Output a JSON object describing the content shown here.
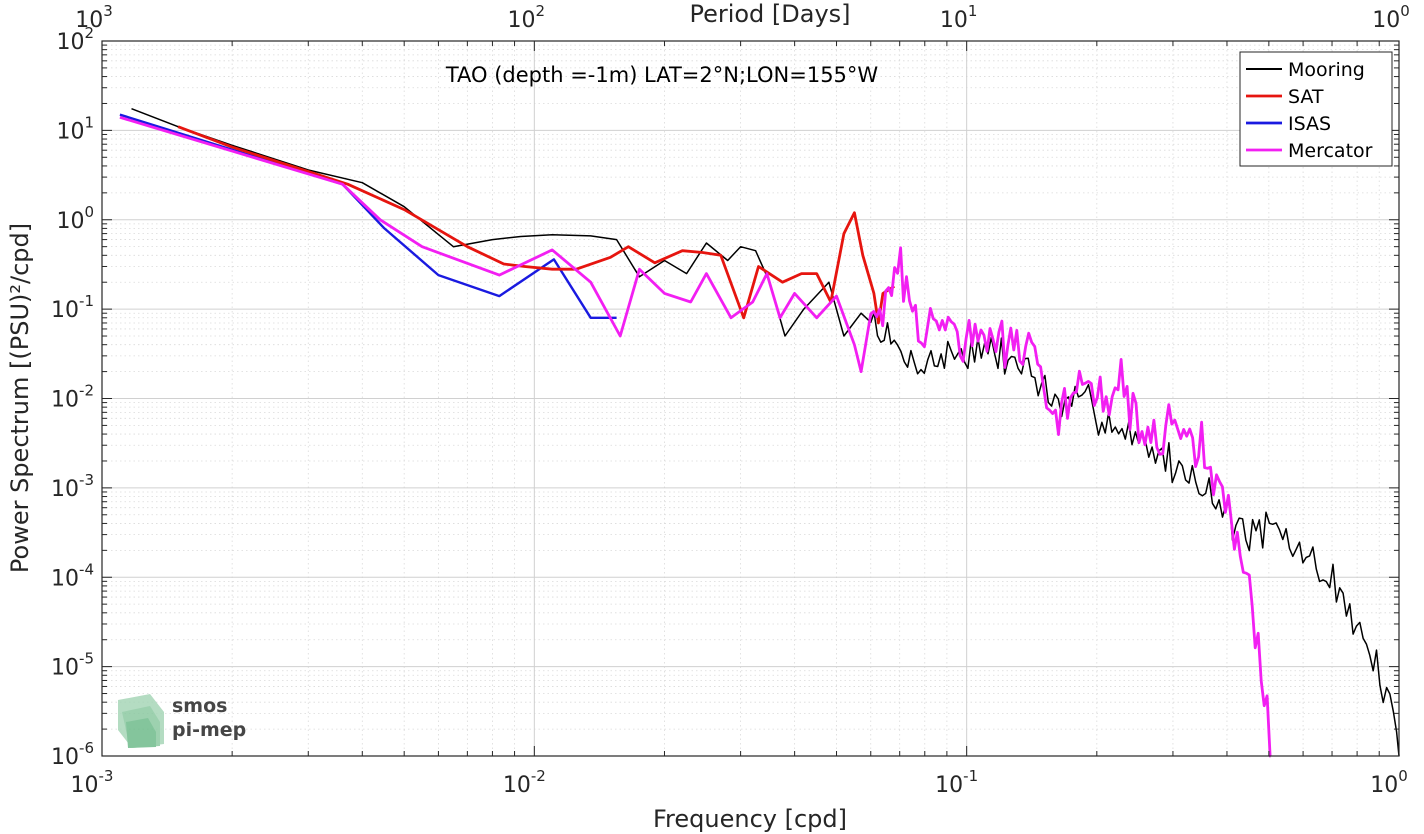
{
  "chart_data": {
    "type": "line",
    "title": "TAO (depth =-1m) LAT=2°N;LON=155°W",
    "xlabel": "Frequency [cpd]",
    "ylabel": "Power Spectrum [(PSU)²/cpd]",
    "top_axis_label": "Period [Days]",
    "x_scale": "log",
    "y_scale": "log",
    "xlim": [
      0.001,
      1
    ],
    "ylim": [
      1e-06,
      100
    ],
    "grid": true,
    "legend_position": "top-right",
    "x_ticks": [
      {
        "value": 0.001,
        "base": "10",
        "exp": "-3"
      },
      {
        "value": 0.01,
        "base": "10",
        "exp": "-2"
      },
      {
        "value": 0.1,
        "base": "10",
        "exp": "-1"
      },
      {
        "value": 1,
        "base": "10",
        "exp": "0"
      }
    ],
    "top_ticks": [
      {
        "value": 1000,
        "base": "10",
        "exp": "3"
      },
      {
        "value": 100,
        "base": "10",
        "exp": "2"
      },
      {
        "value": 10,
        "base": "10",
        "exp": "1"
      },
      {
        "value": 1,
        "base": "10",
        "exp": "0"
      }
    ],
    "y_ticks": [
      {
        "value": 100,
        "base": "10",
        "exp": "2"
      },
      {
        "value": 10,
        "base": "10",
        "exp": "1"
      },
      {
        "value": 1,
        "base": "10",
        "exp": "0"
      },
      {
        "value": 0.1,
        "base": "10",
        "exp": "-1"
      },
      {
        "value": 0.01,
        "base": "10",
        "exp": "-2"
      },
      {
        "value": 0.001,
        "base": "10",
        "exp": "-3"
      },
      {
        "value": 0.0001,
        "base": "10",
        "exp": "-4"
      },
      {
        "value": 1e-05,
        "base": "10",
        "exp": "-5"
      },
      {
        "value": 1e-06,
        "base": "10",
        "exp": "-6"
      }
    ],
    "series": [
      {
        "name": "Mooring",
        "color": "#000000",
        "width": 1.5,
        "noise": {
          "amp": 0.18,
          "seed": 7,
          "step": 1.018
        },
        "anchors": [
          [
            0.00117,
            17.5
          ],
          [
            0.0015,
            11
          ],
          [
            0.002,
            6.8
          ],
          [
            0.003,
            3.6
          ],
          [
            0.004,
            2.6
          ],
          [
            0.005,
            1.4
          ],
          [
            0.0065,
            0.5
          ],
          [
            0.008,
            0.6
          ],
          [
            0.0093,
            0.65
          ],
          [
            0.011,
            0.68
          ],
          [
            0.0135,
            0.66
          ],
          [
            0.0155,
            0.6
          ],
          [
            0.0175,
            0.23
          ],
          [
            0.02,
            0.35
          ],
          [
            0.0225,
            0.25
          ],
          [
            0.025,
            0.55
          ],
          [
            0.028,
            0.35
          ],
          [
            0.03,
            0.5
          ],
          [
            0.0325,
            0.45
          ],
          [
            0.035,
            0.2
          ],
          [
            0.038,
            0.05
          ],
          [
            0.042,
            0.1
          ],
          [
            0.048,
            0.2
          ],
          [
            0.052,
            0.05
          ],
          [
            0.057,
            0.09
          ],
          [
            0.061,
            0.07
          ],
          [
            0.065,
            0.05
          ],
          [
            0.07,
            0.03
          ],
          [
            0.08,
            0.025
          ],
          [
            0.09,
            0.03
          ],
          [
            0.1,
            0.035
          ],
          [
            0.12,
            0.03
          ],
          [
            0.14,
            0.022
          ],
          [
            0.16,
            0.008
          ],
          [
            0.19,
            0.009
          ],
          [
            0.22,
            0.005
          ],
          [
            0.26,
            0.003
          ],
          [
            0.3,
            0.0018
          ],
          [
            0.35,
            0.0012
          ],
          [
            0.4,
            0.0005
          ],
          [
            0.45,
            0.0003
          ],
          [
            0.5,
            0.00035
          ],
          [
            0.6,
            0.00018
          ],
          [
            0.7,
            9e-05
          ],
          [
            0.8,
            3e-05
          ],
          [
            0.9,
            8e-06
          ],
          [
            0.97,
            2.5e-06
          ],
          [
            1.0,
            1e-06
          ]
        ]
      },
      {
        "name": "SAT",
        "color": "#e6150f",
        "width": 2.8,
        "anchors": [
          [
            0.0015,
            11
          ],
          [
            0.002,
            6.5
          ],
          [
            0.0037,
            2.5
          ],
          [
            0.005,
            1.3
          ],
          [
            0.007,
            0.5
          ],
          [
            0.0085,
            0.32
          ],
          [
            0.0095,
            0.3
          ],
          [
            0.011,
            0.28
          ],
          [
            0.0125,
            0.28
          ],
          [
            0.015,
            0.38
          ],
          [
            0.0165,
            0.5
          ],
          [
            0.019,
            0.33
          ],
          [
            0.022,
            0.45
          ],
          [
            0.0245,
            0.43
          ],
          [
            0.027,
            0.4
          ],
          [
            0.0305,
            0.08
          ],
          [
            0.033,
            0.3
          ],
          [
            0.0375,
            0.2
          ],
          [
            0.0415,
            0.25
          ],
          [
            0.045,
            0.25
          ],
          [
            0.0485,
            0.12
          ],
          [
            0.052,
            0.7
          ],
          [
            0.055,
            1.2
          ],
          [
            0.0575,
            0.4
          ],
          [
            0.061,
            0.15
          ],
          [
            0.0625,
            0.07
          ],
          [
            0.064,
            0.15
          ],
          [
            0.068,
            0.18
          ]
        ]
      },
      {
        "name": "ISAS",
        "color": "#1a1ae0",
        "width": 2.4,
        "anchors": [
          [
            0.0011,
            15
          ],
          [
            0.0036,
            2.5
          ],
          [
            0.0045,
            0.8
          ],
          [
            0.006,
            0.24
          ],
          [
            0.0083,
            0.14
          ],
          [
            0.0111,
            0.36
          ],
          [
            0.0135,
            0.08
          ],
          [
            0.0155,
            0.08
          ]
        ]
      },
      {
        "name": "Mercator",
        "color": "#f21ff2",
        "width": 2.8,
        "noise": {
          "amp": 0.25,
          "seed": 31,
          "step": 1.016
        },
        "anchors": [
          [
            0.0011,
            14
          ],
          [
            0.0036,
            2.5
          ],
          [
            0.0044,
            1
          ],
          [
            0.0055,
            0.5
          ],
          [
            0.0083,
            0.24
          ],
          [
            0.011,
            0.46
          ],
          [
            0.0135,
            0.2
          ],
          [
            0.0158,
            0.05
          ],
          [
            0.0175,
            0.28
          ],
          [
            0.02,
            0.15
          ],
          [
            0.023,
            0.12
          ],
          [
            0.025,
            0.25
          ],
          [
            0.0285,
            0.08
          ],
          [
            0.032,
            0.12
          ],
          [
            0.0345,
            0.25
          ],
          [
            0.037,
            0.08
          ],
          [
            0.04,
            0.15
          ],
          [
            0.045,
            0.08
          ],
          [
            0.05,
            0.14
          ],
          [
            0.055,
            0.04
          ],
          [
            0.057,
            0.02
          ],
          [
            0.06,
            0.15
          ],
          [
            0.065,
            0.08
          ],
          [
            0.0685,
            0.3
          ],
          [
            0.075,
            0.1
          ],
          [
            0.08,
            0.05
          ],
          [
            0.09,
            0.08
          ],
          [
            0.1,
            0.04
          ],
          [
            0.11,
            0.05
          ],
          [
            0.13,
            0.035
          ],
          [
            0.15,
            0.025
          ],
          [
            0.16,
            0.006
          ],
          [
            0.18,
            0.018
          ],
          [
            0.2,
            0.012
          ],
          [
            0.23,
            0.013
          ],
          [
            0.26,
            0.003
          ],
          [
            0.3,
            0.004
          ],
          [
            0.35,
            0.003
          ],
          [
            0.4,
            0.0006
          ],
          [
            0.43,
            0.0002
          ],
          [
            0.46,
            5e-05
          ],
          [
            0.48,
            1e-05
          ],
          [
            0.5,
            2e-06
          ],
          [
            0.505,
            1e-06
          ]
        ]
      }
    ]
  },
  "logo": {
    "line1": "smos",
    "line2": "pi-mep"
  }
}
